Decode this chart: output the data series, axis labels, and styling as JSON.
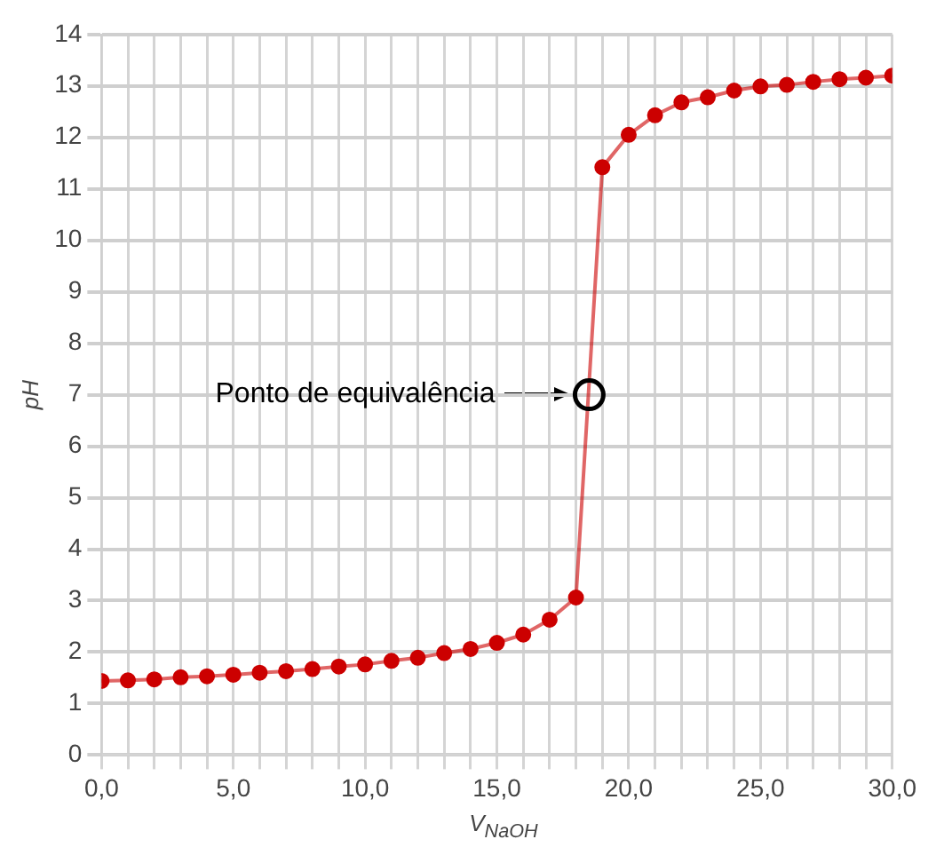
{
  "chart_data": {
    "type": "line",
    "xlabel": "V$_{NaOH}$",
    "ylabel": "pH",
    "x": [
      0,
      1,
      2,
      3,
      4,
      5,
      6,
      7,
      8,
      9,
      10,
      11,
      12,
      13,
      14,
      15,
      16,
      17,
      18,
      19,
      20,
      21,
      22,
      23,
      24,
      25,
      26,
      27,
      28,
      29,
      30
    ],
    "series": [
      {
        "type": "scatter",
        "color": "#000000",
        "x": [
          18.5
        ],
        "values": [
          7
        ]
      },
      {
        "color": "#cc0000",
        "values": [
          1.44,
          1.45,
          1.47,
          1.51,
          1.53,
          1.56,
          1.6,
          1.63,
          1.67,
          1.72,
          1.76,
          1.83,
          1.89,
          1.98,
          2.06,
          2.18,
          2.34,
          2.63,
          3.06,
          11.42,
          12.05,
          12.43,
          12.68,
          12.78,
          12.91,
          12.99,
          13.02,
          13.08,
          13.13,
          13.16,
          13.2
        ]
      }
    ],
    "xlim": [
      0,
      30
    ],
    "xticks": [
      {
        "value": 0,
        "label": "0,0"
      },
      {
        "value": 1,
        "label": null
      },
      {
        "value": 2,
        "label": null
      },
      {
        "value": 3,
        "label": null
      },
      {
        "value": 4,
        "label": null
      },
      {
        "value": 5,
        "label": "5,0"
      },
      {
        "value": 6,
        "label": null
      },
      {
        "value": 7,
        "label": null
      },
      {
        "value": 8,
        "label": null
      },
      {
        "value": 9,
        "label": null
      },
      {
        "value": 10,
        "label": "10,0"
      },
      {
        "value": 11,
        "label": null
      },
      {
        "value": 12,
        "label": null
      },
      {
        "value": 13,
        "label": null
      },
      {
        "value": 14,
        "label": null
      },
      {
        "value": 15,
        "label": "15,0"
      },
      {
        "value": 16,
        "label": null
      },
      {
        "value": 17,
        "label": null
      },
      {
        "value": 18,
        "label": null
      },
      {
        "value": 19,
        "label": null
      },
      {
        "value": 20,
        "label": "20,0"
      },
      {
        "value": 21,
        "label": null
      },
      {
        "value": 22,
        "label": null
      },
      {
        "value": 23,
        "label": null
      },
      {
        "value": 24,
        "label": null
      },
      {
        "value": 25,
        "label": "25,0"
      },
      {
        "value": 26,
        "label": null
      },
      {
        "value": 27,
        "label": null
      },
      {
        "value": 28,
        "label": null
      },
      {
        "value": 29,
        "label": null
      },
      {
        "value": 30,
        "label": "30,0"
      }
    ],
    "ylim": [
      0,
      14
    ],
    "yticks": [
      0,
      1,
      2,
      3,
      4,
      5,
      6,
      7,
      8,
      9,
      10,
      11,
      12,
      13,
      14
    ],
    "grid": true,
    "marker": "circle",
    "line_style": "solid",
    "annotations": [
      "Ponto de equivalência"
    ]
  }
}
